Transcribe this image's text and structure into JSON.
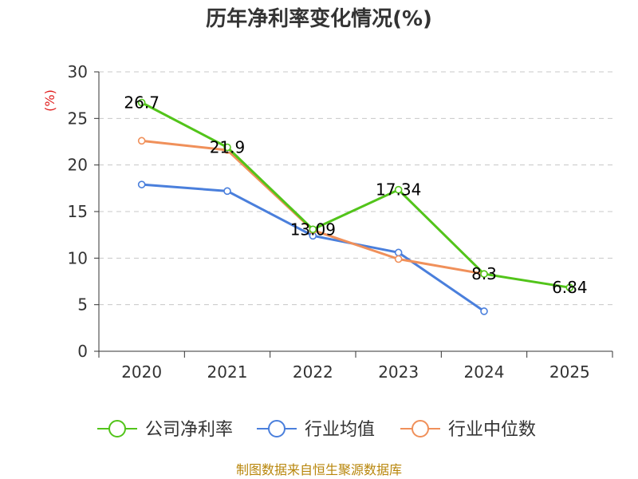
{
  "chart_data": {
    "type": "line",
    "title": "历年净利率变化情况(%)",
    "ylabel": "(%)",
    "xlabel": "",
    "categories": [
      "2020",
      "2021",
      "2022",
      "2023",
      "2024",
      "2025"
    ],
    "ylim": [
      0,
      30
    ],
    "yticks": [
      0,
      5,
      10,
      15,
      20,
      25,
      30
    ],
    "yticks_labels": [
      "0",
      "5",
      "10",
      "15",
      "20",
      "25",
      "30"
    ],
    "grid": true,
    "legend_position": "bottom",
    "series": [
      {
        "name": "公司净利率",
        "color": "#52c41a",
        "values": [
          26.7,
          21.9,
          13.09,
          17.34,
          8.3,
          6.84
        ],
        "labels": [
          "26.7",
          "21.9",
          "13.09",
          "17.34",
          "8.3",
          "6.84"
        ]
      },
      {
        "name": "行业均值",
        "color": "#4a7fdc",
        "values": [
          17.9,
          17.2,
          12.4,
          10.6,
          4.3,
          null
        ]
      },
      {
        "name": "行业中位数",
        "color": "#f0905a",
        "values": [
          22.6,
          21.6,
          13.0,
          9.9,
          8.3,
          null
        ]
      }
    ],
    "source": "制图数据来自恒生聚源数据库"
  }
}
